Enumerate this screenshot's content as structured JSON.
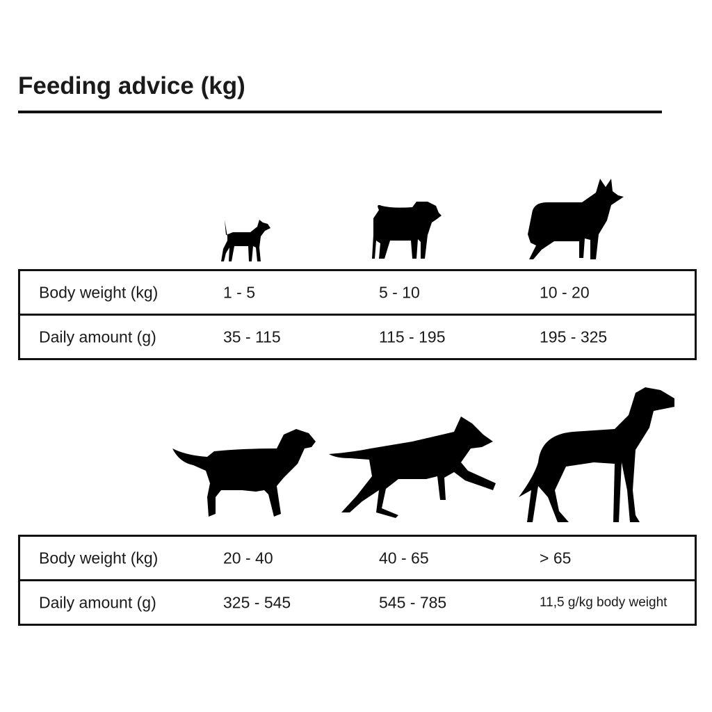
{
  "title": "Feeding advice (kg)",
  "tables": [
    {
      "rows": [
        {
          "label": "Body weight (kg)",
          "values": [
            "1 - 5",
            "5 - 10",
            "10 - 20"
          ]
        },
        {
          "label": "Daily amount (g)",
          "values": [
            "35 - 115",
            "115 - 195",
            "195 - 325"
          ]
        }
      ],
      "dogs": [
        "chihuahua-icon",
        "pug-icon",
        "collie-icon"
      ]
    },
    {
      "rows": [
        {
          "label": "Body weight (kg)",
          "values": [
            "20 - 40",
            "40 - 65",
            "> 65"
          ]
        },
        {
          "label": "Daily amount (g)",
          "values": [
            "325 - 545",
            "545 - 785",
            "11,5 g/kg body weight"
          ]
        }
      ],
      "dogs": [
        "labrador-icon",
        "running-dog-icon",
        "great-dane-icon"
      ]
    }
  ]
}
